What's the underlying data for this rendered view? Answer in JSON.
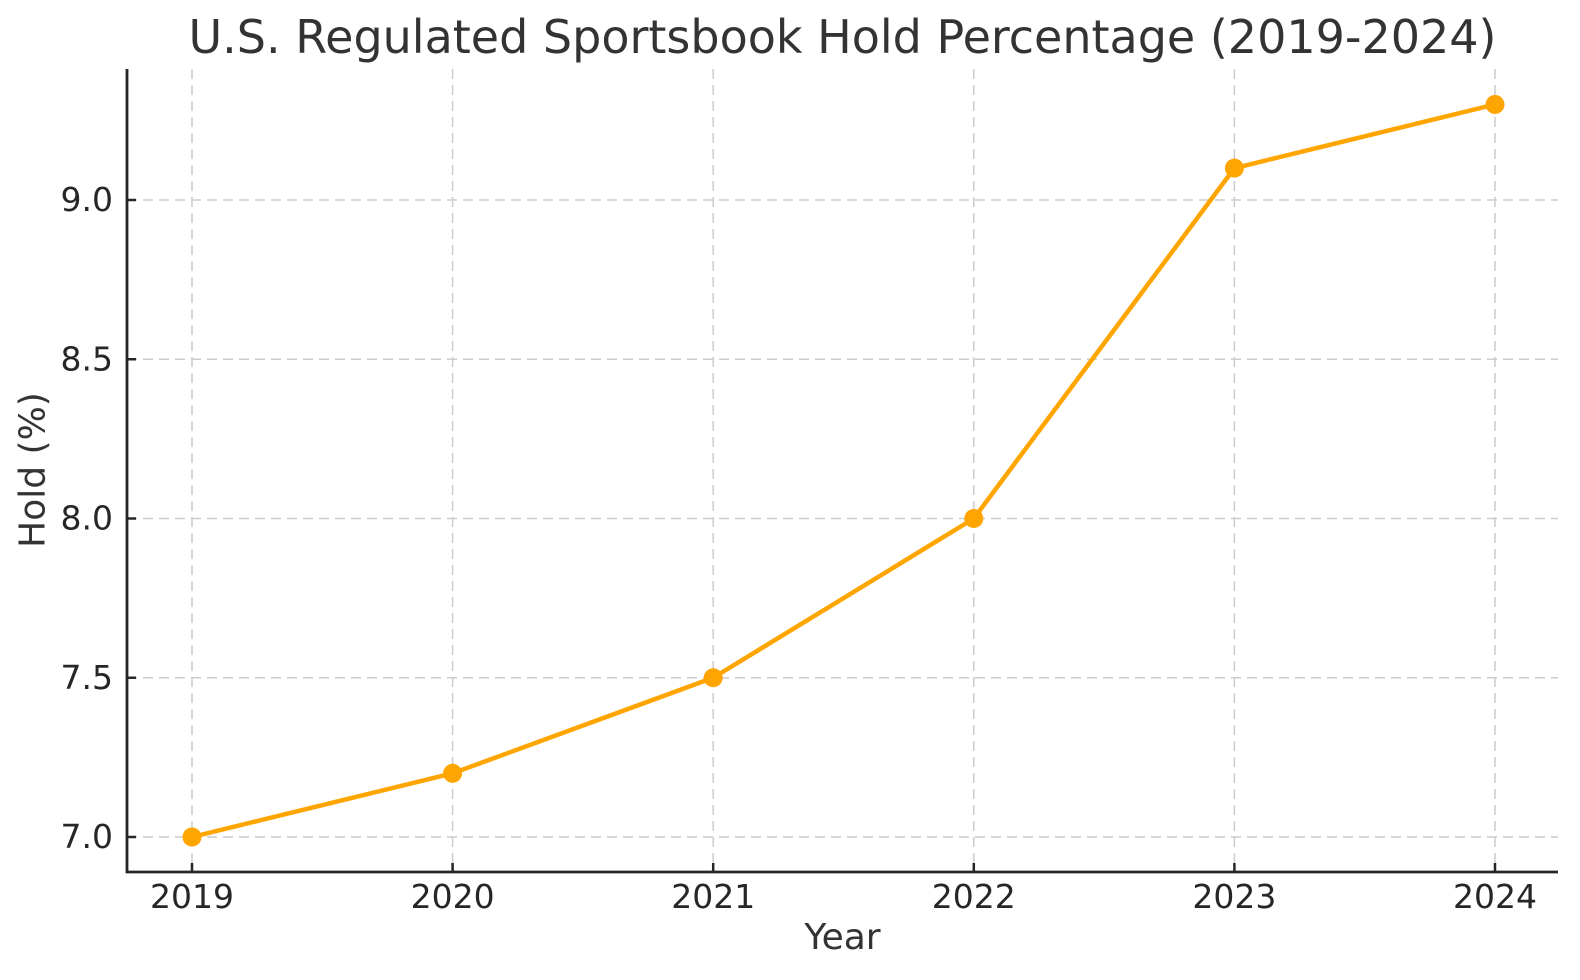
{
  "page": {
    "background_color": "#ffffff"
  },
  "chart_data": {
    "type": "line",
    "title": "U.S. Regulated Sportsbook Hold Percentage (2019-2024)",
    "xlabel": "Year",
    "ylabel": "Hold (%)",
    "categories": [
      "2019",
      "2020",
      "2021",
      "2022",
      "2023",
      "2024"
    ],
    "series": [
      {
        "name": "Hold (%)",
        "values": [
          7.0,
          7.2,
          7.5,
          8.0,
          9.1,
          9.3
        ]
      }
    ],
    "ytick_labels": [
      "7.0",
      "7.5",
      "8.0",
      "8.5",
      "9.0"
    ],
    "ytick_values": [
      7.0,
      7.5,
      8.0,
      8.5,
      9.0
    ],
    "ylim": [
      6.89,
      9.42
    ],
    "grid": "dashed",
    "legend_position": "none",
    "style": {
      "line_color": "#FFA500",
      "marker_shape": "circle",
      "marker_color": "#FFA500",
      "grid_color": "#cccccc",
      "axis_color": "#262626",
      "text_color": "#333333"
    }
  }
}
